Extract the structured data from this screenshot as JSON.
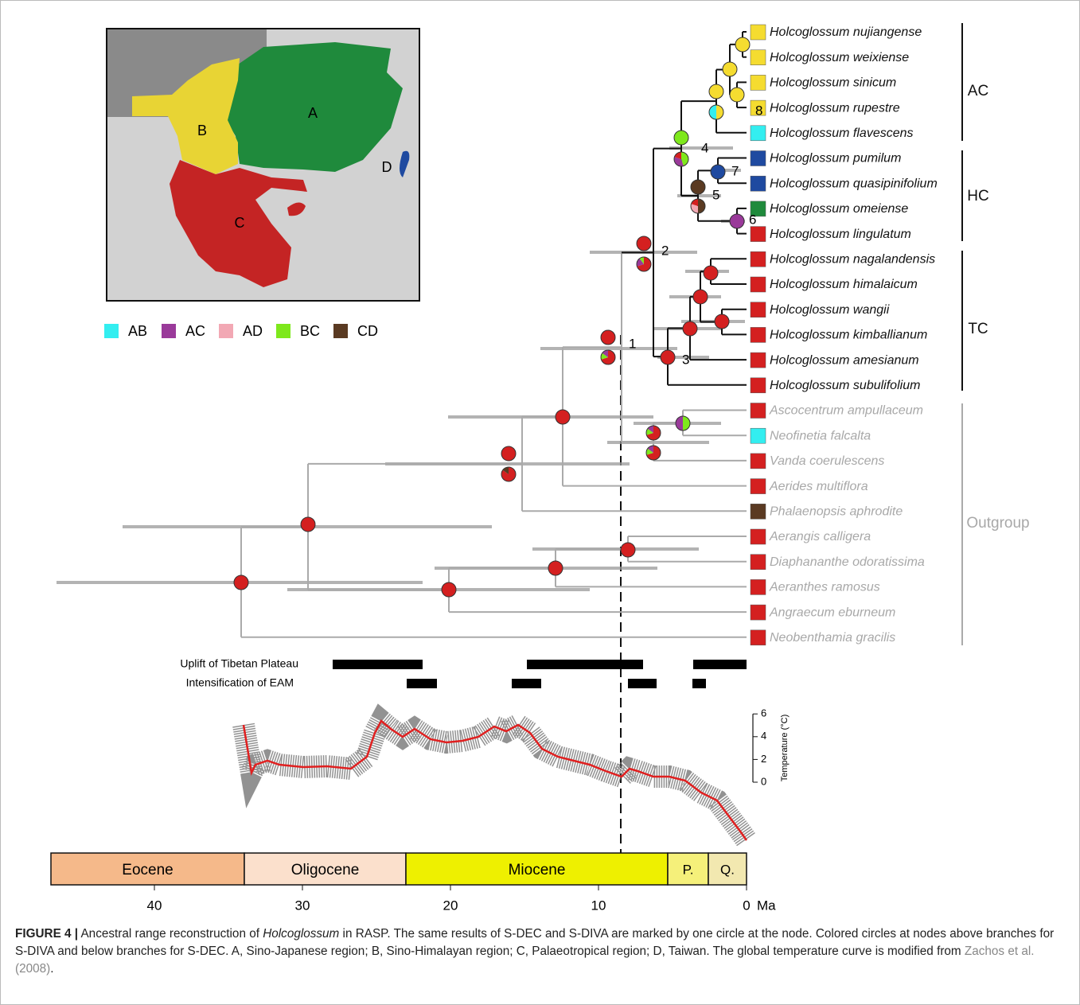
{
  "map": {
    "regions": [
      "A",
      "B",
      "C",
      "D"
    ]
  },
  "legend": [
    {
      "label": "AB",
      "color": "#33eef0"
    },
    {
      "label": "AC",
      "color": "#9a3a9a"
    },
    {
      "label": "AD",
      "color": "#f2a8b4"
    },
    {
      "label": "BC",
      "color": "#7ee81c"
    },
    {
      "label": "CD",
      "color": "#5a3a22"
    }
  ],
  "taxa": [
    {
      "name": "Holcoglossum nujiangense",
      "color": "#f5dc30"
    },
    {
      "name": "Holcoglossum weixiense",
      "color": "#f5dc30"
    },
    {
      "name": "Holcoglossum sinicum",
      "color": "#f5dc30"
    },
    {
      "name": "Holcoglossum rupestre",
      "color": "#f5dc30"
    },
    {
      "name": "Holcoglossum flavescens",
      "color": "#33eef0"
    },
    {
      "name": "Holcoglossum pumilum",
      "color": "#1f4aa0"
    },
    {
      "name": "Holcoglossum quasipinifolium",
      "color": "#1f4aa0"
    },
    {
      "name": "Holcoglossum omeiense",
      "color": "#1f8a3c"
    },
    {
      "name": "Holcoglossum lingulatum",
      "color": "#d42020"
    },
    {
      "name": "Holcoglossum nagalandensis",
      "color": "#d42020"
    },
    {
      "name": "Holcoglossum himalaicum",
      "color": "#d42020"
    },
    {
      "name": "Holcoglossum wangii",
      "color": "#d42020"
    },
    {
      "name": "Holcoglossum kimballianum",
      "color": "#d42020"
    },
    {
      "name": "Holcoglossum amesianum",
      "color": "#d42020"
    },
    {
      "name": "Holcoglossum subulifolium",
      "color": "#d42020"
    },
    {
      "name": "Ascocentrum ampullaceum",
      "color": "#d42020"
    },
    {
      "name": "Neofinetia falcalta",
      "color": "#33eef0"
    },
    {
      "name": "Vanda coerulescens",
      "color": "#d42020"
    },
    {
      "name": "Aerides multiflora",
      "color": "#d42020"
    },
    {
      "name": "Phalaenopsis aphrodite",
      "color": "#5a3a22"
    },
    {
      "name": "Aerangis calligera",
      "color": "#d42020"
    },
    {
      "name": "Diaphananthe odoratissima",
      "color": "#d42020"
    },
    {
      "name": "Aeranthes ramosus",
      "color": "#d42020"
    },
    {
      "name": "Angraecum eburneum",
      "color": "#d42020"
    },
    {
      "name": "Neobenthamia gracilis",
      "color": "#d42020"
    }
  ],
  "clades": [
    "AC",
    "HC",
    "TC",
    "Outgroup"
  ],
  "node_labels": [
    1,
    2,
    3,
    4,
    5,
    6,
    7,
    8
  ],
  "events": [
    "Uplift of Tibetan Plateau",
    "Intensification of EAM"
  ],
  "temperature_axis": {
    "label": "Temperature (°C)",
    "ticks": [
      6,
      4,
      2,
      0
    ]
  },
  "epochs": [
    "Eocene",
    "Oligocene",
    "Miocene",
    "P.",
    "Q."
  ],
  "time_axis": {
    "ticks": [
      40,
      30,
      20,
      10,
      0
    ],
    "unit": "Ma"
  },
  "caption": {
    "label": "FIGURE 4 |",
    "text1": "Ancestral range reconstruction of",
    "genus": "Holcoglossum",
    "text2": "in RASP. The same results of S-DEC and S-DIVA are marked by one circle at the node. Colored circles at nodes above branches for S-DIVA and below branches for S-DEC. A, Sino-Japanese region; B, Sino-Himalayan region; C, Palaeotropical region; D, Taiwan. The global temperature curve is modified from",
    "reference": "Zachos et al. (2008)",
    "end": "."
  }
}
